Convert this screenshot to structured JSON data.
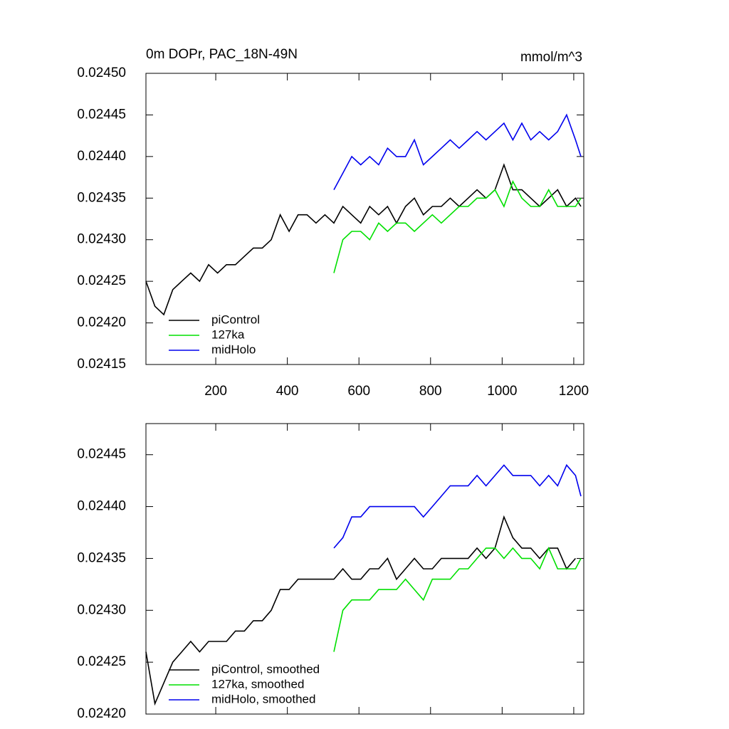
{
  "chart_data": [
    {
      "type": "line",
      "title": "0m DOPr, PAC_18N-49N",
      "units": "mmol/m^3",
      "x": [
        5,
        30,
        55,
        80,
        105,
        130,
        155,
        180,
        205,
        230,
        255,
        280,
        305,
        330,
        355,
        380,
        405,
        430,
        455,
        480,
        505,
        530,
        555,
        580,
        605,
        630,
        655,
        680,
        705,
        730,
        755,
        780,
        805,
        830,
        855,
        880,
        905,
        930,
        955,
        980,
        1005,
        1030,
        1055,
        1080,
        1105,
        1130,
        1155,
        1180,
        1205,
        1220
      ],
      "series": [
        {
          "name": "piControl",
          "color": "#000000",
          "values": [
            0.02425,
            0.02422,
            0.02421,
            0.02424,
            0.02425,
            0.02426,
            0.02425,
            0.02427,
            0.02426,
            0.02427,
            0.02427,
            0.02428,
            0.02429,
            0.02429,
            0.0243,
            0.02433,
            0.02431,
            0.02433,
            0.02433,
            0.02432,
            0.02433,
            0.02432,
            0.02434,
            0.02433,
            0.02432,
            0.02434,
            0.02433,
            0.02434,
            0.02432,
            0.02434,
            0.02435,
            0.02433,
            0.02434,
            0.02434,
            0.02435,
            0.02434,
            0.02435,
            0.02436,
            0.02435,
            0.02436,
            0.02439,
            0.02436,
            0.02436,
            0.02435,
            0.02434,
            0.02435,
            0.02436,
            0.02434,
            0.02435,
            0.02434
          ]
        },
        {
          "name": "127ka",
          "color": "#00e000",
          "values": [
            null,
            null,
            null,
            null,
            null,
            null,
            null,
            null,
            null,
            null,
            null,
            null,
            null,
            null,
            null,
            null,
            null,
            null,
            null,
            null,
            null,
            0.02426,
            0.0243,
            0.02431,
            0.02431,
            0.0243,
            0.02432,
            0.02431,
            0.02432,
            0.02432,
            0.02431,
            0.02432,
            0.02433,
            0.02432,
            0.02433,
            0.02434,
            0.02434,
            0.02435,
            0.02435,
            0.02436,
            0.02434,
            0.02437,
            0.02435,
            0.02434,
            0.02434,
            0.02436,
            0.02434,
            0.02434,
            0.02434,
            0.02435
          ]
        },
        {
          "name": "midHolo",
          "color": "#0000ee",
          "values": [
            null,
            null,
            null,
            null,
            null,
            null,
            null,
            null,
            null,
            null,
            null,
            null,
            null,
            null,
            null,
            null,
            null,
            null,
            null,
            null,
            null,
            0.02436,
            0.02438,
            0.0244,
            0.02439,
            0.0244,
            0.02439,
            0.02441,
            0.0244,
            0.0244,
            0.02442,
            0.02439,
            0.0244,
            0.02441,
            0.02442,
            0.02441,
            0.02442,
            0.02443,
            0.02442,
            0.02443,
            0.02444,
            0.02442,
            0.02444,
            0.02442,
            0.02443,
            0.02442,
            0.02443,
            0.02445,
            0.02442,
            0.0244
          ]
        }
      ],
      "xlim": [
        5,
        1228
      ],
      "xticks": [
        200,
        400,
        600,
        800,
        1000,
        1200
      ],
      "ylim": [
        0.02415,
        0.0245
      ],
      "yticks": [
        {
          "value": 0.02415,
          "label": "0.02415"
        },
        {
          "value": 0.0242,
          "label": "0.02420"
        },
        0.02425,
        {
          "value": 0.0243,
          "label": "0.02430"
        },
        0.02435,
        {
          "value": 0.0244,
          "label": "0.02440"
        },
        0.02445,
        {
          "value": 0.0245,
          "label": "0.02450"
        }
      ],
      "legend": "lower left"
    },
    {
      "type": "line",
      "x": [
        5,
        30,
        55,
        80,
        105,
        130,
        155,
        180,
        205,
        230,
        255,
        280,
        305,
        330,
        355,
        380,
        405,
        430,
        455,
        480,
        505,
        530,
        555,
        580,
        605,
        630,
        655,
        680,
        705,
        730,
        755,
        780,
        805,
        830,
        855,
        880,
        905,
        930,
        955,
        980,
        1005,
        1030,
        1055,
        1080,
        1105,
        1130,
        1155,
        1180,
        1205,
        1220
      ],
      "series": [
        {
          "name": "piControl, smoothed",
          "color": "#000000",
          "values": [
            0.02426,
            0.02421,
            0.02423,
            0.02425,
            0.02426,
            0.02427,
            0.02426,
            0.02427,
            0.02427,
            0.02427,
            0.02428,
            0.02428,
            0.02429,
            0.02429,
            0.0243,
            0.02432,
            0.02432,
            0.02433,
            0.02433,
            0.02433,
            0.02433,
            0.02433,
            0.02434,
            0.02433,
            0.02433,
            0.02434,
            0.02434,
            0.02435,
            0.02433,
            0.02434,
            0.02435,
            0.02434,
            0.02434,
            0.02435,
            0.02435,
            0.02435,
            0.02435,
            0.02436,
            0.02435,
            0.02436,
            0.02439,
            0.02437,
            0.02436,
            0.02436,
            0.02435,
            0.02436,
            0.02436,
            0.02434,
            0.02435,
            null
          ]
        },
        {
          "name": "127ka, smoothed",
          "color": "#00e000",
          "values": [
            null,
            null,
            null,
            null,
            null,
            null,
            null,
            null,
            null,
            null,
            null,
            null,
            null,
            null,
            null,
            null,
            null,
            null,
            null,
            null,
            null,
            0.02426,
            0.0243,
            0.02431,
            0.02431,
            0.02431,
            0.02432,
            0.02432,
            0.02432,
            0.02433,
            0.02432,
            0.02431,
            0.02433,
            0.02433,
            0.02433,
            0.02434,
            0.02434,
            0.02435,
            0.02436,
            0.02436,
            0.02435,
            0.02436,
            0.02435,
            0.02435,
            0.02434,
            0.02436,
            0.02434,
            0.02434,
            0.02434,
            0.02435
          ]
        },
        {
          "name": "midHolo, smoothed",
          "color": "#0000ee",
          "values": [
            null,
            null,
            null,
            null,
            null,
            null,
            null,
            null,
            null,
            null,
            null,
            null,
            null,
            null,
            null,
            null,
            null,
            null,
            null,
            null,
            null,
            0.02436,
            0.02437,
            0.02439,
            0.02439,
            0.0244,
            0.0244,
            0.0244,
            0.0244,
            0.0244,
            0.0244,
            0.02439,
            0.0244,
            0.02441,
            0.02442,
            0.02442,
            0.02442,
            0.02443,
            0.02442,
            0.02443,
            0.02444,
            0.02443,
            0.02443,
            0.02443,
            0.02442,
            0.02443,
            0.02442,
            0.02444,
            0.02443,
            0.02441
          ]
        }
      ],
      "xlim": [
        5,
        1228
      ],
      "xticks": [
        200,
        400,
        600,
        800,
        1000,
        1200
      ],
      "ylim": [
        0.0242,
        0.02448
      ],
      "yticks": [
        {
          "value": 0.0242,
          "label": "0.02420"
        },
        0.02425,
        {
          "value": 0.0243,
          "label": "0.02430"
        },
        0.02435,
        {
          "value": 0.0244,
          "label": "0.02440"
        },
        0.02445
      ],
      "legend": "lower left"
    }
  ]
}
